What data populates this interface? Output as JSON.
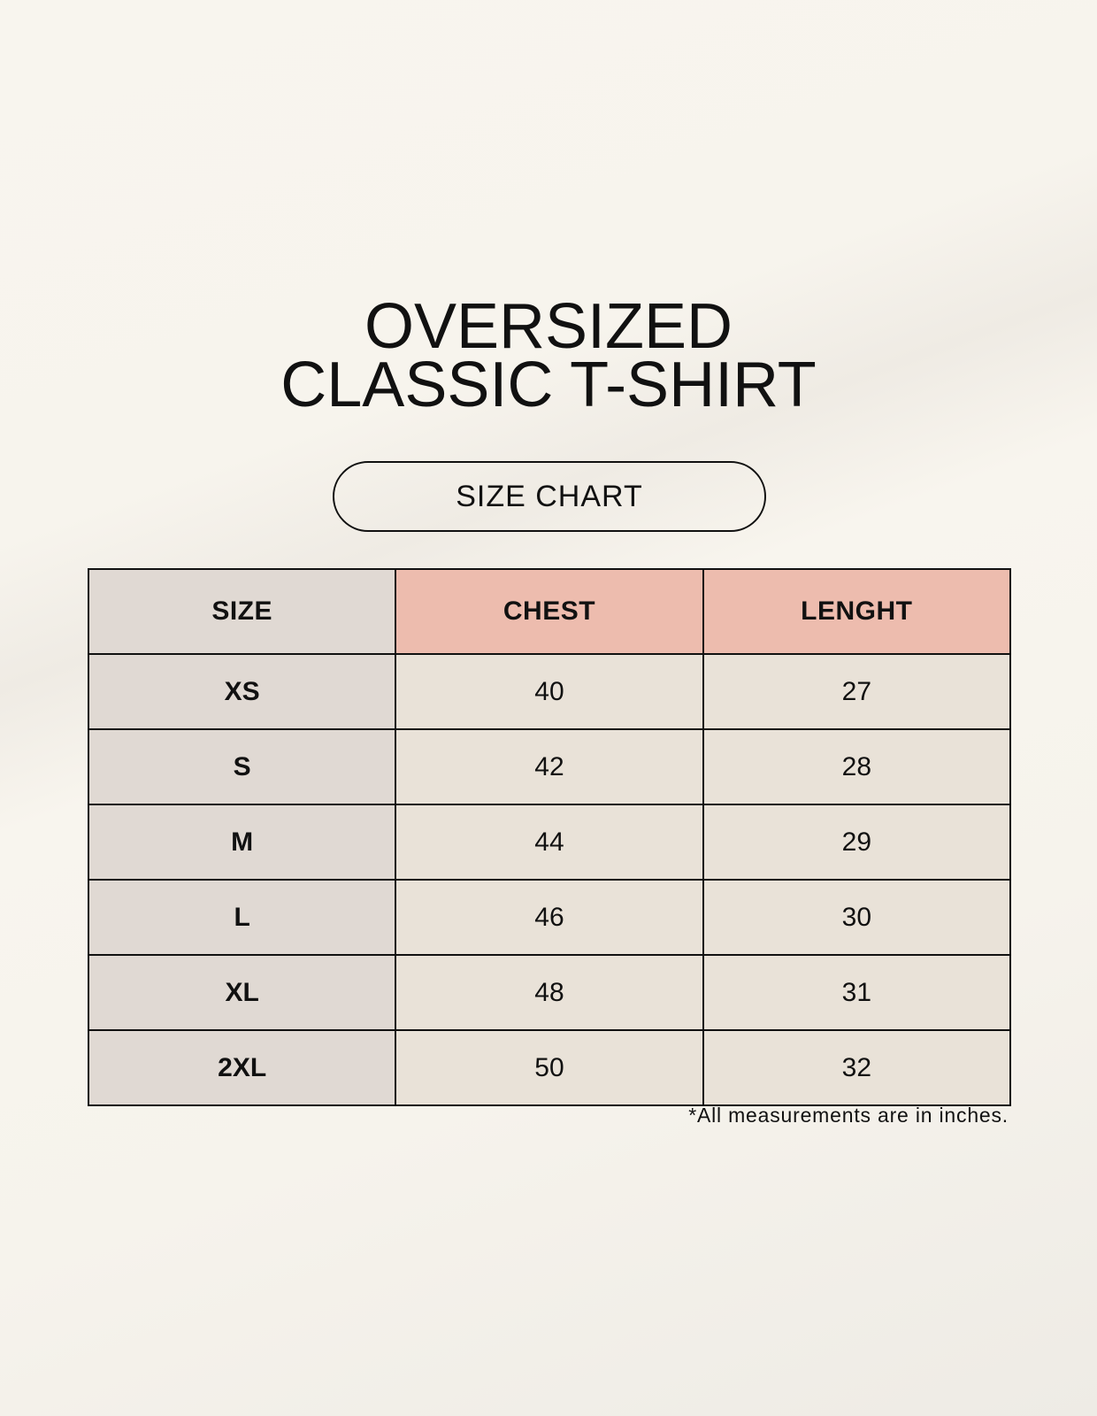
{
  "title": {
    "line1": "OVERSIZED",
    "line2": "CLASSIC T-SHIRT"
  },
  "badge": "SIZE CHART",
  "table": {
    "headers": [
      "SIZE",
      "CHEST",
      "LENGHT"
    ],
    "rows": [
      [
        "XS",
        "40",
        "27"
      ],
      [
        "S",
        "42",
        "28"
      ],
      [
        "M",
        "44",
        "29"
      ],
      [
        "L",
        "46",
        "30"
      ],
      [
        "XL",
        "48",
        "31"
      ],
      [
        "2XL",
        "50",
        "32"
      ]
    ]
  },
  "footnote": "*All measurements are in inches.",
  "colors": {
    "size_column": "#e0d9d3",
    "header_accent": "#edbcae",
    "cell": "#e9e2d8",
    "background": "#f8f5ee"
  }
}
